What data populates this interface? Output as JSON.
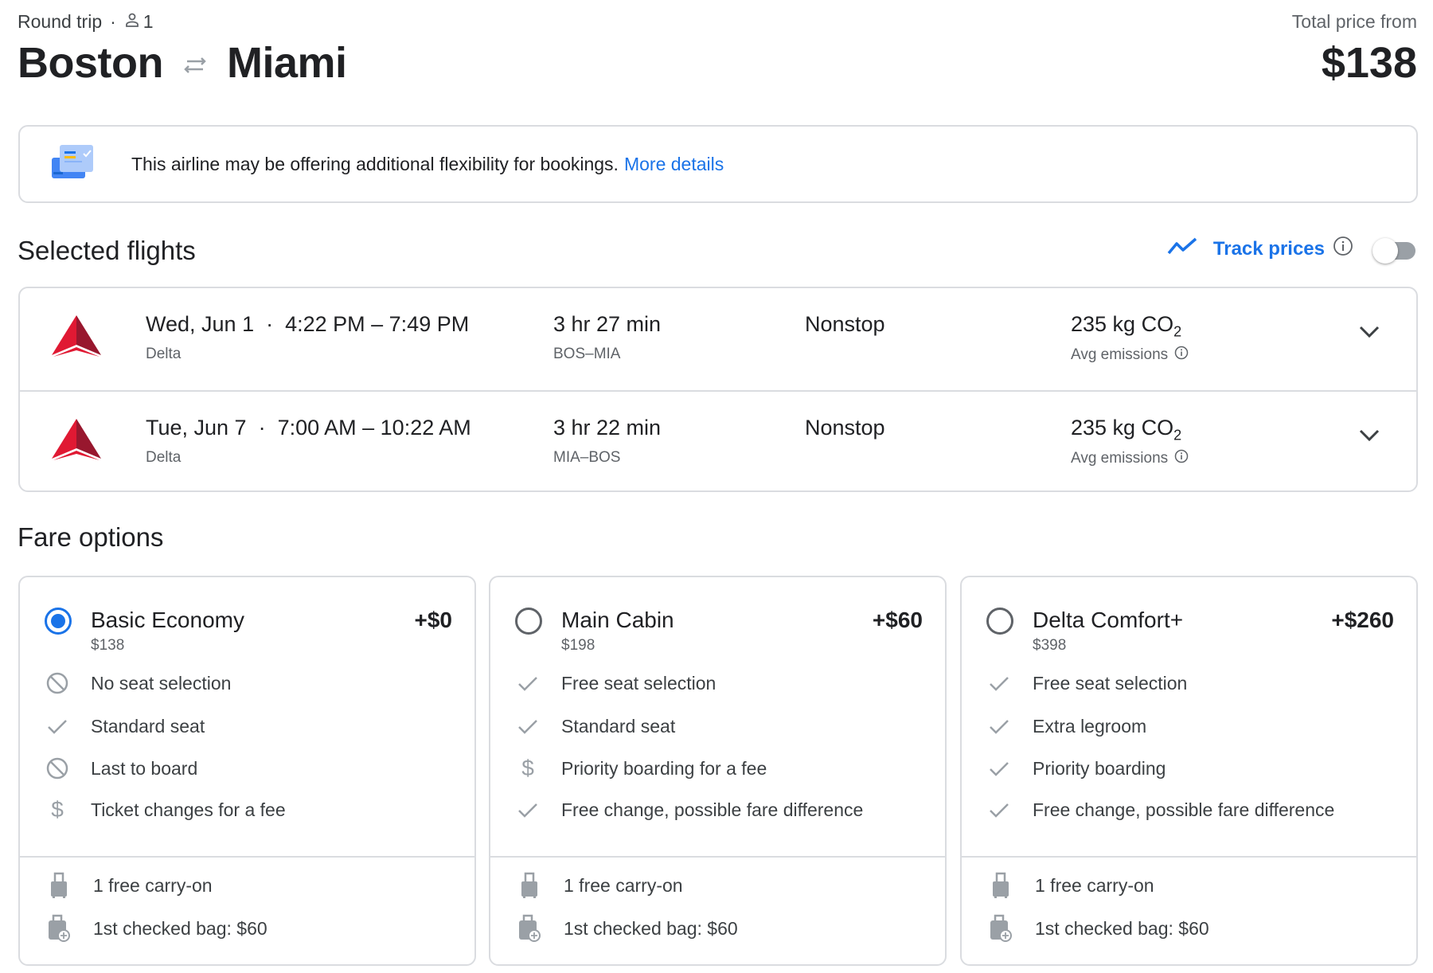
{
  "header": {
    "trip_type": "Round trip",
    "passengers": "1",
    "origin": "Boston",
    "destination": "Miami",
    "total_label": "Total price from",
    "total_price": "$138"
  },
  "banner": {
    "text": "This airline may be offering additional flexibility for bookings.",
    "link": "More details"
  },
  "selected": {
    "title": "Selected flights",
    "track_label": "Track prices",
    "track_enabled": false,
    "flights": [
      {
        "date": "Wed, Jun 1",
        "times": "4:22 PM – 7:49 PM",
        "airline": "Delta",
        "duration": "3 hr 27 min",
        "route": "BOS–MIA",
        "stops": "Nonstop",
        "co2": "235 kg CO",
        "co2_sub": "2",
        "emissions_label": "Avg emissions"
      },
      {
        "date": "Tue, Jun 7",
        "times": "7:00 AM – 10:22 AM",
        "airline": "Delta",
        "duration": "3 hr 22 min",
        "route": "MIA–BOS",
        "stops": "Nonstop",
        "co2": "235 kg CO",
        "co2_sub": "2",
        "emissions_label": "Avg emissions"
      }
    ]
  },
  "fares": {
    "title": "Fare options",
    "options": [
      {
        "name": "Basic Economy",
        "price": "$138",
        "delta": "+$0",
        "selected": true,
        "features": [
          {
            "icon": "block-icon",
            "text": "No seat selection"
          },
          {
            "icon": "check-icon",
            "text": "Standard seat"
          },
          {
            "icon": "block-icon",
            "text": "Last to board"
          },
          {
            "icon": "dollar-icon",
            "text": "Ticket changes for a fee"
          }
        ],
        "bags": [
          {
            "icon": "carry-on-icon",
            "text": "1 free carry-on"
          },
          {
            "icon": "checked-bag-icon",
            "text": "1st checked bag: $60"
          }
        ]
      },
      {
        "name": "Main Cabin",
        "price": "$198",
        "delta": "+$60",
        "selected": false,
        "features": [
          {
            "icon": "check-icon",
            "text": "Free seat selection"
          },
          {
            "icon": "check-icon",
            "text": "Standard seat"
          },
          {
            "icon": "dollar-icon",
            "text": "Priority boarding for a fee"
          },
          {
            "icon": "check-icon",
            "text": "Free change, possible fare difference"
          }
        ],
        "bags": [
          {
            "icon": "carry-on-icon",
            "text": "1 free carry-on"
          },
          {
            "icon": "checked-bag-icon",
            "text": "1st checked bag: $60"
          }
        ]
      },
      {
        "name": "Delta Comfort+",
        "price": "$398",
        "delta": "+$260",
        "selected": false,
        "features": [
          {
            "icon": "check-icon",
            "text": "Free seat selection"
          },
          {
            "icon": "check-icon",
            "text": "Extra legroom"
          },
          {
            "icon": "check-icon",
            "text": "Priority boarding"
          },
          {
            "icon": "check-icon",
            "text": "Free change, possible fare difference"
          }
        ],
        "bags": [
          {
            "icon": "carry-on-icon",
            "text": "1 free carry-on"
          },
          {
            "icon": "checked-bag-icon",
            "text": "1st checked bag: $60"
          }
        ]
      }
    ]
  },
  "colors": {
    "accent": "#1a73e8",
    "text": "#202124",
    "muted": "#5f6368",
    "border": "#dadce0",
    "delta_red": "#e01933"
  }
}
